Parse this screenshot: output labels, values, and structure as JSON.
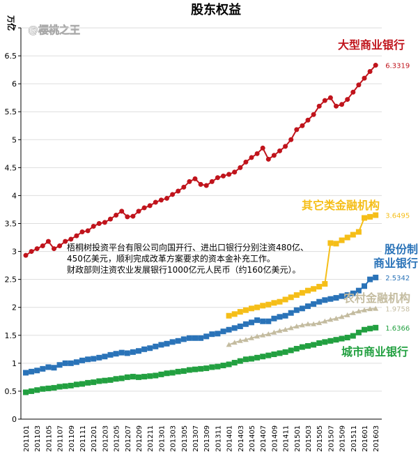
{
  "chart_data": {
    "type": "line",
    "title": "股东权益",
    "y_label": "万亿",
    "watermark": "@樱桃之王",
    "annotation": [
      "梧桐树投资平台有限公司向国开行、进出口银行分别注资480亿、",
      "450亿美元，顺利完成改革方案要求的资本金补充工作。",
      "财政部则注资农业发展银行1000亿元人民币（约160亿美元）。"
    ],
    "categories": [
      "201101",
      null,
      "201103",
      null,
      "201105",
      null,
      "201107",
      null,
      "201109",
      null,
      "201111",
      null,
      "201201",
      null,
      "201203",
      null,
      "201205",
      null,
      "201207",
      null,
      "201209",
      null,
      "201211",
      null,
      "201301",
      null,
      "201303",
      null,
      "201305",
      null,
      "201307",
      null,
      "201309",
      null,
      "201311",
      null,
      "201401",
      null,
      "201403",
      null,
      "201405",
      null,
      "201407",
      null,
      "201409",
      null,
      "201411",
      null,
      "201501",
      null,
      "201503",
      null,
      "201505",
      null,
      "201507",
      null,
      "201509",
      null,
      "201511",
      null,
      "201601",
      null,
      "201603"
    ],
    "ylim": [
      0,
      7
    ],
    "yticks": [
      0,
      0.5,
      1,
      1.5,
      2,
      2.5,
      3,
      3.5,
      4,
      4.5,
      5,
      5.5,
      6,
      6.5,
      7
    ],
    "grid": true,
    "series": [
      {
        "name": "大型商业银行",
        "color": "#c0141c",
        "marker": "circle",
        "values": [
          2.93,
          3.0,
          3.05,
          3.1,
          3.18,
          3.05,
          3.1,
          3.18,
          3.22,
          3.28,
          3.35,
          3.37,
          3.45,
          3.5,
          3.52,
          3.58,
          3.65,
          3.72,
          3.62,
          3.63,
          3.72,
          3.78,
          3.82,
          3.88,
          3.92,
          3.95,
          4.02,
          4.08,
          4.15,
          4.25,
          4.3,
          4.2,
          4.18,
          4.25,
          4.32,
          4.35,
          4.38,
          4.42,
          4.5,
          4.6,
          4.68,
          4.75,
          4.85,
          4.65,
          4.72,
          4.8,
          4.88,
          5.0,
          5.18,
          5.25,
          5.35,
          5.45,
          5.6,
          5.7,
          5.75,
          5.6,
          5.63,
          5.72,
          5.85,
          5.98,
          6.1,
          6.22,
          6.3319
        ]
      },
      {
        "name": "其它类金融机构",
        "color": "#f5be18",
        "marker": "square",
        "values": [
          null,
          null,
          null,
          null,
          null,
          null,
          null,
          null,
          null,
          null,
          null,
          null,
          null,
          null,
          null,
          null,
          null,
          null,
          null,
          null,
          null,
          null,
          null,
          null,
          null,
          null,
          null,
          null,
          null,
          null,
          null,
          null,
          null,
          null,
          null,
          null,
          1.85,
          1.88,
          1.92,
          1.95,
          1.98,
          2.0,
          2.03,
          2.05,
          2.08,
          2.1,
          2.14,
          2.18,
          2.22,
          2.26,
          2.3,
          2.33,
          2.37,
          2.42,
          3.15,
          3.14,
          3.2,
          3.25,
          3.3,
          3.35,
          3.6,
          3.62,
          3.6495
        ]
      },
      {
        "name": "股份制\n商业银行",
        "color": "#2a73b8",
        "marker": "square",
        "values": [
          0.83,
          0.85,
          0.87,
          0.9,
          0.93,
          0.92,
          0.97,
          1.0,
          1.0,
          1.02,
          1.05,
          1.07,
          1.08,
          1.1,
          1.12,
          1.15,
          1.17,
          1.19,
          1.18,
          1.2,
          1.22,
          1.25,
          1.27,
          1.3,
          1.33,
          1.35,
          1.38,
          1.4,
          1.43,
          1.45,
          1.45,
          1.45,
          1.48,
          1.52,
          1.53,
          1.57,
          1.6,
          1.63,
          1.66,
          1.7,
          1.73,
          1.77,
          1.75,
          1.75,
          1.8,
          1.83,
          1.85,
          1.9,
          1.95,
          1.98,
          2.02,
          2.06,
          2.1,
          2.13,
          2.15,
          2.17,
          2.2,
          2.22,
          2.25,
          2.3,
          2.38,
          2.5,
          2.5342
        ]
      },
      {
        "name": "农村金融机构",
        "color": "#c4bca0",
        "marker": "triangle",
        "values": [
          null,
          null,
          null,
          null,
          null,
          null,
          null,
          null,
          null,
          null,
          null,
          null,
          null,
          null,
          null,
          null,
          null,
          null,
          null,
          null,
          null,
          null,
          null,
          null,
          null,
          null,
          null,
          null,
          null,
          null,
          null,
          null,
          null,
          null,
          null,
          null,
          1.33,
          1.37,
          1.4,
          1.42,
          1.45,
          1.48,
          1.5,
          1.52,
          1.55,
          1.58,
          1.6,
          1.63,
          1.66,
          1.68,
          1.7,
          1.7,
          1.72,
          1.75,
          1.78,
          1.8,
          1.83,
          1.86,
          1.9,
          1.93,
          1.95,
          1.97,
          1.9758
        ]
      },
      {
        "name": "城市商业银行",
        "color": "#22a040",
        "marker": "square",
        "values": [
          0.48,
          0.5,
          0.52,
          0.54,
          0.55,
          0.56,
          0.58,
          0.59,
          0.6,
          0.62,
          0.63,
          0.65,
          0.66,
          0.68,
          0.69,
          0.7,
          0.72,
          0.73,
          0.75,
          0.76,
          0.75,
          0.76,
          0.77,
          0.78,
          0.8,
          0.82,
          0.83,
          0.85,
          0.86,
          0.88,
          0.89,
          0.9,
          0.91,
          0.93,
          0.94,
          0.96,
          0.98,
          1.01,
          1.04,
          1.07,
          1.08,
          1.1,
          1.12,
          1.14,
          1.16,
          1.18,
          1.2,
          1.23,
          1.26,
          1.29,
          1.31,
          1.33,
          1.36,
          1.38,
          1.4,
          1.42,
          1.44,
          1.46,
          1.49,
          1.55,
          1.6,
          1.62,
          1.6366
        ]
      }
    ]
  }
}
